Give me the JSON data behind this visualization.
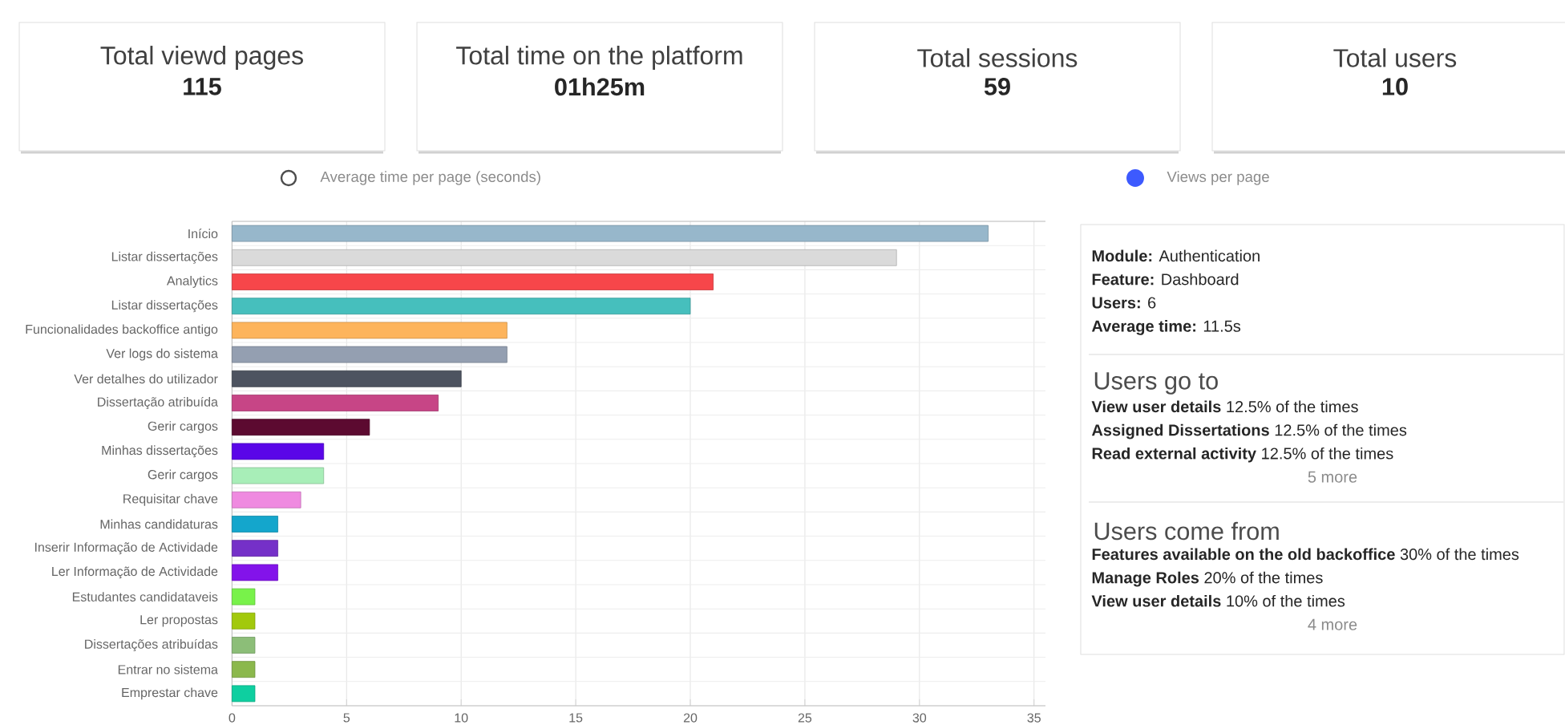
{
  "chart_data": [
    {
      "type": "other",
      "title": "Total viewd pages",
      "annotations": [
        "115"
      ]
    },
    {
      "type": "other",
      "title": "Total time on the platform",
      "annotations": [
        "01h25m"
      ]
    },
    {
      "type": "other",
      "title": "Total sessions",
      "annotations": [
        "59"
      ]
    },
    {
      "type": "other",
      "title": "Total users",
      "annotations": [
        "10"
      ]
    },
    {
      "type": "bar",
      "orientation": "horizontal",
      "categories": [
        "Início",
        "Listar dissertações",
        "Analytics",
        "Listar dissertações",
        "Funcionalidades backoffice antigo",
        "Ver logs do sistema",
        "Ver detalhes do utilizador",
        "Dissertação atribuída",
        "Gerir cargos",
        "Minhas dissertações",
        "Gerir cargos",
        "Requisitar chave",
        "Minhas candidaturas",
        "Inserir Informação de Actividade",
        "Ler Informação de Actividade",
        "Estudantes candidataveis",
        "Ler propostas",
        "Dissertações atribuídas",
        "Entrar no sistema",
        "Emprestar chave"
      ],
      "values": [
        33,
        29,
        21,
        20,
        12,
        12,
        10,
        9,
        6,
        4,
        4,
        3,
        2,
        2,
        2,
        1,
        1,
        1,
        1,
        1
      ],
      "colors": [
        "#97b7cb",
        "#dadada",
        "#f7464a",
        "#46bfbd",
        "#fdb45c",
        "#949fb1",
        "#4d5360",
        "#c74586",
        "#5c0a30",
        "#5a06e8",
        "#a8eeb8",
        "#ef8ae0",
        "#14a6cc",
        "#7530c8",
        "#8313ea",
        "#78f24a",
        "#a2c90c",
        "#8cbe78",
        "#8bb84c",
        "#0ecfa0"
      ],
      "xlim": [
        0,
        35.5
      ],
      "xticks": [
        0,
        5,
        10,
        15,
        20,
        25,
        30,
        35
      ],
      "grid": true,
      "annotations": [
        "Average time per page (seconds)",
        "Views per page"
      ]
    },
    {
      "type": "other",
      "annotations": [
        "**Module:** Authentication",
        "**Feature:** Dashboard",
        "**Users:** 6",
        "**Average time:** 11.5s"
      ]
    },
    {
      "type": "other",
      "title": "Users go to",
      "annotations": [
        "**View user details** 12.5% of the times",
        "**Assigned Dissertations** 12.5% of the times",
        "**Read external activity** 12.5% of the times",
        "5 more"
      ]
    },
    {
      "type": "other",
      "title": "Users come from",
      "annotations": [
        "**Features available on the old backoffice** 30% of the times",
        "**Manage Roles** 20% of the times",
        "**View user details** 10% of the times",
        "4 more"
      ]
    }
  ]
}
